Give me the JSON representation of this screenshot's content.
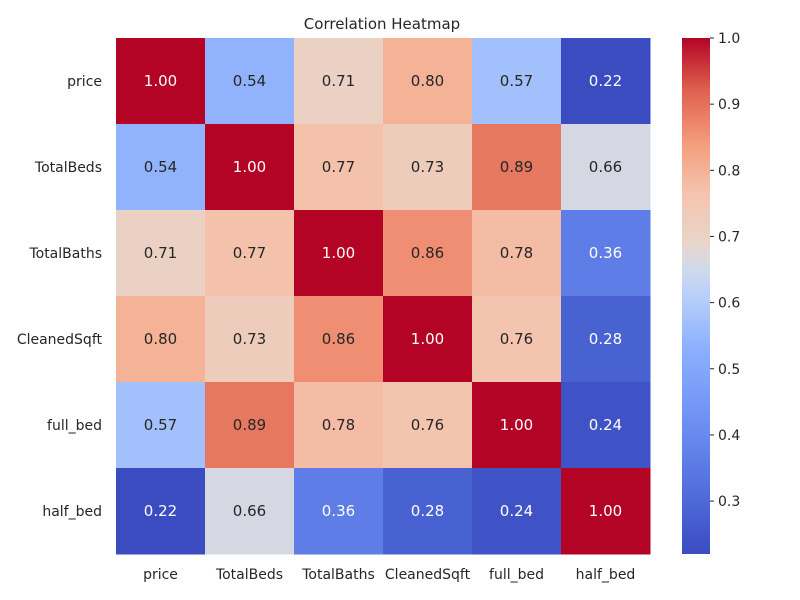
{
  "chart_data": {
    "type": "heatmap",
    "title": "Correlation Heatmap",
    "colormap": "coolwarm",
    "x_categories": [
      "price",
      "TotalBeds",
      "TotalBaths",
      "CleanedSqft",
      "full_bed",
      "half_bed"
    ],
    "y_categories": [
      "price",
      "TotalBeds",
      "TotalBaths",
      "CleanedSqft",
      "full_bed",
      "half_bed"
    ],
    "values": [
      [
        1.0,
        0.54,
        0.71,
        0.8,
        0.57,
        0.22
      ],
      [
        0.54,
        1.0,
        0.77,
        0.73,
        0.89,
        0.66
      ],
      [
        0.71,
        0.77,
        1.0,
        0.86,
        0.78,
        0.36
      ],
      [
        0.8,
        0.73,
        0.86,
        1.0,
        0.76,
        0.28
      ],
      [
        0.57,
        0.89,
        0.78,
        0.76,
        1.0,
        0.24
      ],
      [
        0.22,
        0.66,
        0.36,
        0.28,
        0.24,
        1.0
      ]
    ],
    "vmin": 0.22,
    "vmax": 1.0,
    "colorbar_ticks": [
      1.0,
      0.9,
      0.8,
      0.7,
      0.6,
      0.5,
      0.4,
      0.3
    ]
  }
}
